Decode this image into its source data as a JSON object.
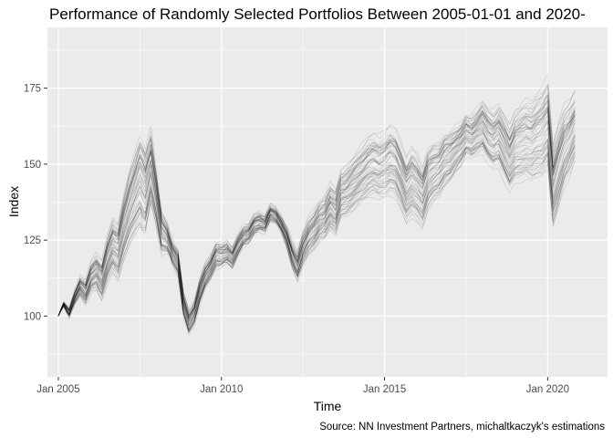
{
  "chart_data": {
    "type": "line",
    "title": "Performance of Randomly Selected Portfolios Between 2005-01-01 and 2020-",
    "xlabel": "Time",
    "ylabel": "Index",
    "caption": "Source: NN Investment Partners, michaltkaczyk's estimations",
    "xlim": [
      "2004-09-01",
      "2021-11-01"
    ],
    "ylim": [
      80,
      195
    ],
    "x_ticks": [
      {
        "date": "2005-01-01",
        "label": "Jan 2005"
      },
      {
        "date": "2010-01-01",
        "label": "Jan 2010"
      },
      {
        "date": "2015-01-01",
        "label": "Jan 2015"
      },
      {
        "date": "2020-01-01",
        "label": "Jan 2020"
      }
    ],
    "y_ticks": [
      100,
      125,
      150,
      175
    ],
    "grid": true,
    "legend": "none",
    "series_count": 60,
    "line_color": "#000000",
    "line_opacity": 0.13,
    "mean_path": {
      "x": [
        "2005-01-01",
        "2005-03-01",
        "2005-05-01",
        "2005-07-01",
        "2005-09-01",
        "2005-11-01",
        "2006-01-01",
        "2006-03-01",
        "2006-05-01",
        "2006-07-01",
        "2006-09-01",
        "2006-11-01",
        "2007-01-01",
        "2007-03-01",
        "2007-05-01",
        "2007-07-01",
        "2007-09-01",
        "2007-11-01",
        "2008-01-01",
        "2008-03-01",
        "2008-05-01",
        "2008-07-01",
        "2008-09-01",
        "2008-11-01",
        "2009-01-01",
        "2009-03-01",
        "2009-05-01",
        "2009-07-01",
        "2009-09-01",
        "2009-11-01",
        "2010-01-01",
        "2010-03-01",
        "2010-05-01",
        "2010-07-01",
        "2010-09-01",
        "2010-11-01",
        "2011-01-01",
        "2011-03-01",
        "2011-05-01",
        "2011-07-01",
        "2011-09-01",
        "2011-11-01",
        "2012-01-01",
        "2012-03-01",
        "2012-05-01",
        "2012-07-01",
        "2012-09-01",
        "2012-11-01",
        "2013-01-01",
        "2013-03-01",
        "2013-05-01",
        "2013-07-01",
        "2013-09-01",
        "2013-11-01",
        "2014-01-01",
        "2014-03-01",
        "2014-05-01",
        "2014-07-01",
        "2014-09-01",
        "2014-11-01",
        "2015-01-01",
        "2015-03-01",
        "2015-05-01",
        "2015-07-01",
        "2015-09-01",
        "2015-11-01",
        "2016-01-01",
        "2016-03-01",
        "2016-05-01",
        "2016-07-01",
        "2016-09-01",
        "2016-11-01",
        "2017-01-01",
        "2017-03-01",
        "2017-05-01",
        "2017-07-01",
        "2017-09-01",
        "2017-11-01",
        "2018-01-01",
        "2018-03-01",
        "2018-05-01",
        "2018-07-01",
        "2018-09-01",
        "2018-11-01",
        "2019-01-01",
        "2019-03-01",
        "2019-05-01",
        "2019-07-01",
        "2019-09-01",
        "2019-11-01",
        "2020-01-01",
        "2020-03-01",
        "2020-05-01",
        "2020-07-01",
        "2020-09-01",
        "2020-11-01"
      ],
      "y": [
        100,
        104,
        101,
        106,
        110,
        108,
        113,
        115,
        112,
        119,
        124,
        122,
        130,
        136,
        141,
        146,
        142,
        150,
        140,
        128,
        126,
        121,
        118,
        104,
        98,
        101,
        108,
        113,
        116,
        120,
        120,
        121,
        119,
        123,
        126,
        127,
        130,
        131,
        130,
        134,
        133,
        130,
        126,
        120,
        116,
        122,
        126,
        128,
        131,
        132,
        136,
        134,
        140,
        141,
        143,
        145,
        147,
        149,
        150,
        149,
        150,
        152,
        151,
        147,
        142,
        145,
        143,
        140,
        146,
        148,
        149,
        152,
        153,
        155,
        157,
        160,
        159,
        161,
        163,
        160,
        158,
        160,
        156,
        152,
        156,
        157,
        158,
        157,
        159,
        160,
        163,
        142,
        149,
        155,
        158,
        162
      ]
    }
  }
}
